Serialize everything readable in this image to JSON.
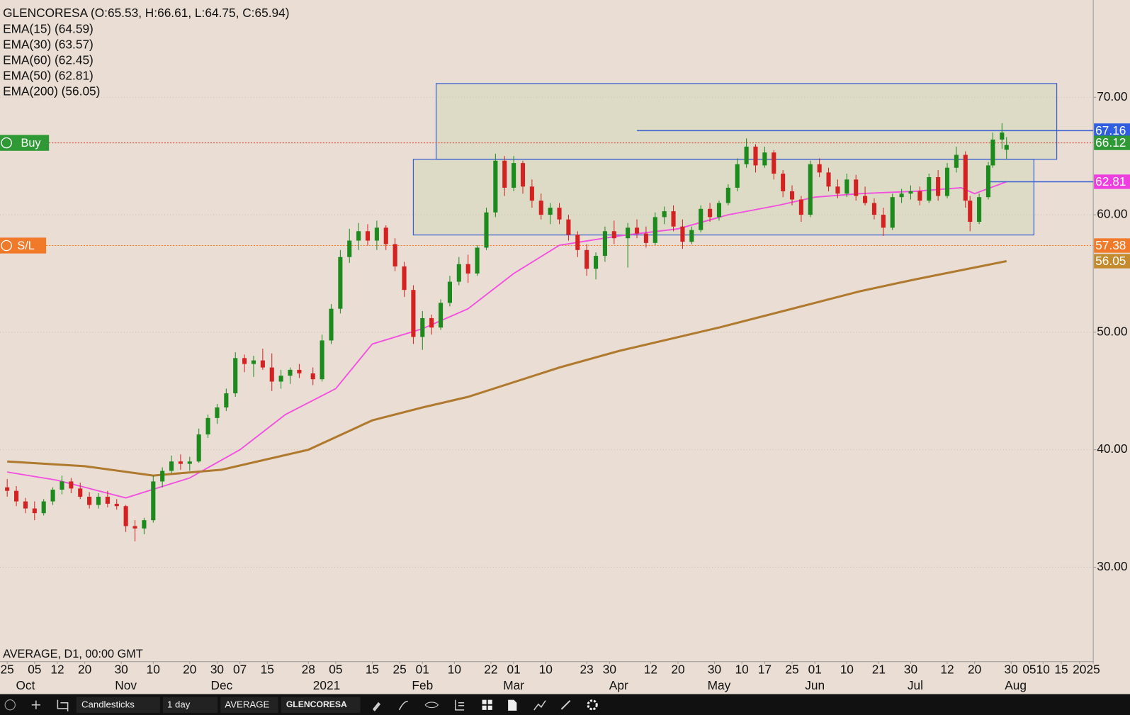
{
  "header": {
    "title": "GLENCORESA (O:65.53, H:66.61, L:64.75, C:65.94)",
    "indicators": [
      "EMA(15) (64.59)",
      "EMA(30) (63.57)",
      "EMA(60) (62.45)",
      "EMA(50) (62.81)",
      "EMA(200) (56.05)"
    ],
    "footer": "AVERAGE, D1, 00:00 GMT"
  },
  "toolbar": {
    "chart_type": "Candlesticks",
    "interval": "1 day",
    "indicator": "AVERAGE",
    "symbol": "GLENCORESA"
  },
  "chart_data": {
    "type": "candlestick",
    "up_color": "#1c8a1c",
    "down_color": "#d42121",
    "background": "#e9ddd4",
    "xlim": [
      "2020-09-25",
      "2021-08-25"
    ],
    "ylim": [
      21.96,
      78.28
    ],
    "yticks": [
      {
        "value": 30,
        "label": "30.00"
      },
      {
        "value": 40,
        "label": "40.00"
      },
      {
        "value": 50,
        "label": "50.00"
      },
      {
        "value": 60,
        "label": "60.00"
      },
      {
        "value": 70,
        "label": "70.00"
      }
    ],
    "grid": true,
    "xticks": [
      {
        "value": "2020-09-25",
        "label": "25"
      },
      {
        "value": "2020-10-05",
        "label": "05"
      },
      {
        "value": "2020-10-12",
        "label": "12"
      },
      {
        "value": "2020-10-20",
        "label": "20"
      },
      {
        "value": "2020-10-30",
        "label": "30"
      },
      {
        "value": "2020-11-10",
        "label": "10"
      },
      {
        "value": "2020-11-20",
        "label": "20"
      },
      {
        "value": "2020-11-30",
        "label": "30"
      },
      {
        "value": "2020-12-07",
        "label": "07"
      },
      {
        "value": "2020-12-15",
        "label": "15"
      },
      {
        "value": "2020-12-28",
        "label": "28"
      },
      {
        "value": "2021-01-05",
        "label": "05"
      },
      {
        "value": "2021-01-15",
        "label": "15"
      },
      {
        "value": "2021-01-25",
        "label": "25"
      },
      {
        "value": "2021-02-01",
        "label": "01"
      },
      {
        "value": "2021-02-10",
        "label": "10"
      },
      {
        "value": "2021-02-22",
        "label": "22"
      },
      {
        "value": "2021-03-01",
        "label": "01"
      },
      {
        "value": "2021-03-10",
        "label": "10"
      },
      {
        "value": "2021-03-23",
        "label": "23"
      },
      {
        "value": "2021-03-30",
        "label": "30"
      },
      {
        "value": "2021-04-12",
        "label": "12"
      },
      {
        "value": "2021-04-20",
        "label": "20"
      },
      {
        "value": "2021-04-30",
        "label": "30"
      },
      {
        "value": "2021-05-10",
        "label": "10"
      },
      {
        "value": "2021-05-17",
        "label": "17"
      },
      {
        "value": "2021-05-25",
        "label": "25"
      },
      {
        "value": "2021-06-01",
        "label": "01"
      },
      {
        "value": "2021-06-10",
        "label": "10"
      },
      {
        "value": "2021-06-21",
        "label": "21"
      },
      {
        "value": "2021-06-30",
        "label": "30"
      },
      {
        "value": "2021-07-12",
        "label": "12"
      },
      {
        "value": "2021-07-20",
        "label": "20"
      },
      {
        "value": "2021-07-30",
        "label": "30"
      },
      {
        "value": "2021-08-05",
        "label": "05"
      },
      {
        "value": "2021-08-10",
        "label": "10"
      },
      {
        "value": "2021-08-15",
        "label": "15"
      },
      {
        "value": "2021-08-20",
        "label": "20"
      },
      {
        "value": "2021-08-25",
        "label": "25"
      }
    ],
    "month_labels": [
      {
        "value": "2020-10-01",
        "label": "Oct"
      },
      {
        "value": "2020-11-02",
        "label": "Nov"
      },
      {
        "value": "2020-12-01",
        "label": "Dec"
      },
      {
        "value": "2021-01-01",
        "label": "2021"
      },
      {
        "value": "2021-02-01",
        "label": "Feb"
      },
      {
        "value": "2021-03-01",
        "label": "Mar"
      },
      {
        "value": "2021-04-01",
        "label": "Apr"
      },
      {
        "value": "2021-05-03",
        "label": "May"
      },
      {
        "value": "2021-06-01",
        "label": "Jun"
      },
      {
        "value": "2021-07-01",
        "label": "Jul"
      },
      {
        "value": "2021-08-02",
        "label": "Aug"
      }
    ],
    "candles": {
      "x": [
        "2020-09-25",
        "2020-09-29",
        "2020-10-01",
        "2020-10-05",
        "2020-10-07",
        "2020-10-09",
        "2020-10-13",
        "2020-10-15",
        "2020-10-19",
        "2020-10-21",
        "2020-10-23",
        "2020-10-27",
        "2020-10-29",
        "2020-11-02",
        "2020-11-04",
        "2020-11-06",
        "2020-11-10",
        "2020-11-12",
        "2020-11-16",
        "2020-11-18",
        "2020-11-20",
        "2020-11-24",
        "2020-11-26",
        "2020-11-30",
        "2020-12-02",
        "2020-12-04",
        "2020-12-08",
        "2020-12-10",
        "2020-12-14",
        "2020-12-16",
        "2020-12-18",
        "2020-12-22",
        "2020-12-24",
        "2020-12-29",
        "2020-12-31",
        "2021-01-04",
        "2021-01-06",
        "2021-01-08",
        "2021-01-12",
        "2021-01-14",
        "2021-01-18",
        "2021-01-20",
        "2021-01-22",
        "2021-01-26",
        "2021-01-28",
        "2021-02-01",
        "2021-02-03",
        "2021-02-05",
        "2021-02-09",
        "2021-02-11",
        "2021-02-15",
        "2021-02-17",
        "2021-02-19",
        "2021-02-23",
        "2021-02-25",
        "2021-03-01",
        "2021-03-03",
        "2021-03-05",
        "2021-03-09",
        "2021-03-11",
        "2021-03-15",
        "2021-03-17",
        "2021-03-19",
        "2021-03-23",
        "2021-03-25",
        "2021-03-29",
        "2021-03-31",
        "2021-04-05",
        "2021-04-07",
        "2021-04-09",
        "2021-04-13",
        "2021-04-15",
        "2021-04-19",
        "2021-04-21",
        "2021-04-23",
        "2021-04-27",
        "2021-04-29",
        "2021-05-03",
        "2021-05-05",
        "2021-05-07",
        "2021-05-11",
        "2021-05-13",
        "2021-05-17",
        "2021-05-19",
        "2021-05-21",
        "2021-05-25",
        "2021-05-27",
        "2021-05-31",
        "2021-06-02",
        "2021-06-04",
        "2021-06-08",
        "2021-06-10",
        "2021-06-14",
        "2021-06-16",
        "2021-06-18",
        "2021-06-22",
        "2021-06-24",
        "2021-06-28",
        "2021-06-30",
        "2021-07-02",
        "2021-07-06",
        "2021-07-08",
        "2021-07-12",
        "2021-07-14",
        "2021-07-16",
        "2021-07-19",
        "2021-07-21",
        "2021-07-23",
        "2021-07-26",
        "2021-07-28",
        "2021-07-29"
      ],
      "open": [
        36.8,
        36.5,
        35.6,
        35.0,
        34.6,
        35.6,
        36.6,
        37.3,
        36.7,
        36.0,
        35.3,
        36.0,
        35.4,
        35.2,
        33.5,
        33.3,
        34.0,
        37.3,
        38.2,
        39.0,
        38.8,
        39.0,
        41.3,
        42.7,
        43.6,
        44.8,
        47.8,
        47.3,
        47.6,
        47.0,
        45.8,
        46.3,
        46.8,
        46.5,
        46.0,
        49.3,
        52.0,
        56.4,
        57.8,
        58.6,
        57.8,
        58.9,
        57.5,
        55.6,
        53.6,
        49.6,
        51.2,
        50.4,
        52.5,
        54.3,
        55.8,
        55.0,
        57.2,
        60.2,
        64.6,
        62.3,
        64.4,
        62.4,
        61.2,
        60.0,
        60.6,
        59.6,
        58.3,
        57.0,
        55.4,
        56.5,
        58.6,
        58.0,
        58.9,
        58.4,
        57.6,
        59.8,
        60.3,
        59.0,
        57.7,
        58.7,
        60.5,
        59.8,
        61.0,
        62.3,
        64.3,
        65.8,
        64.2,
        65.3,
        63.5,
        62.0,
        61.3,
        60.0,
        64.3,
        63.6,
        62.4,
        61.8,
        63.0,
        61.6,
        61.0,
        60.0,
        58.9,
        61.5,
        61.8,
        62.0,
        61.2,
        63.2,
        61.6,
        64.0,
        65.1,
        61.2,
        59.4,
        61.5,
        64.2,
        66.4,
        65.53
      ],
      "high": [
        37.5,
        36.9,
        35.9,
        35.6,
        35.8,
        36.8,
        37.8,
        37.6,
        37.2,
        36.4,
        36.3,
        36.5,
        35.8,
        35.3,
        34.0,
        34.2,
        37.8,
        38.5,
        39.5,
        39.6,
        39.4,
        41.8,
        43.0,
        43.9,
        45.2,
        48.3,
        48.1,
        48.0,
        48.6,
        48.2,
        46.8,
        47.0,
        47.3,
        47.0,
        49.8,
        52.4,
        57.0,
        58.8,
        59.3,
        59.2,
        59.5,
        59.1,
        58.0,
        56.0,
        54.0,
        51.8,
        51.5,
        52.8,
        54.8,
        56.4,
        56.6,
        57.4,
        60.6,
        65.2,
        65.0,
        65.0,
        64.6,
        63.0,
        61.8,
        61.0,
        61.0,
        60.0,
        58.6,
        57.5,
        56.8,
        59.0,
        59.5,
        59.3,
        59.6,
        59.0,
        60.2,
        60.7,
        60.8,
        59.6,
        59.0,
        60.8,
        61.0,
        61.2,
        62.6,
        64.8,
        66.5,
        66.0,
        65.8,
        65.5,
        63.8,
        62.5,
        61.6,
        64.6,
        64.8,
        64.0,
        63.0,
        63.5,
        63.4,
        62.4,
        61.4,
        60.6,
        61.8,
        62.2,
        62.5,
        62.4,
        63.5,
        63.8,
        64.4,
        65.8,
        65.4,
        61.6,
        61.8,
        64.5,
        67.0,
        67.8,
        66.61
      ],
      "low": [
        36.0,
        35.2,
        34.6,
        34.0,
        34.4,
        35.3,
        36.2,
        36.3,
        35.8,
        35.0,
        35.0,
        35.1,
        34.9,
        33.0,
        32.2,
        32.8,
        33.8,
        36.8,
        38.0,
        38.3,
        38.2,
        38.9,
        41.0,
        42.2,
        43.3,
        44.5,
        46.6,
        46.2,
        46.8,
        45.0,
        45.2,
        45.6,
        46.1,
        45.5,
        45.8,
        49.0,
        51.6,
        55.9,
        57.0,
        57.4,
        57.0,
        57.0,
        55.2,
        53.0,
        49.0,
        48.5,
        49.8,
        50.2,
        52.2,
        54.0,
        54.2,
        54.8,
        57.0,
        59.8,
        61.6,
        62.0,
        61.8,
        60.6,
        59.6,
        59.2,
        59.2,
        57.8,
        56.4,
        54.8,
        54.5,
        56.0,
        57.5,
        55.5,
        58.0,
        57.2,
        57.4,
        59.2,
        58.6,
        57.1,
        57.5,
        58.5,
        59.4,
        59.5,
        60.8,
        62.0,
        64.0,
        63.6,
        64.0,
        63.0,
        61.5,
        60.8,
        59.4,
        59.8,
        63.2,
        62.0,
        61.4,
        61.5,
        61.2,
        60.8,
        59.6,
        58.2,
        58.7,
        61.0,
        61.3,
        60.8,
        61.0,
        61.2,
        61.4,
        63.6,
        60.6,
        58.6,
        59.2,
        61.3,
        64.0,
        65.6,
        64.75
      ],
      "close": [
        36.5,
        35.6,
        35.0,
        34.6,
        35.6,
        36.6,
        37.3,
        36.7,
        36.0,
        35.3,
        36.0,
        35.4,
        35.2,
        33.5,
        33.3,
        34.0,
        37.3,
        38.2,
        39.0,
        38.8,
        39.0,
        41.3,
        42.7,
        43.6,
        44.8,
        47.8,
        47.3,
        47.6,
        47.0,
        45.8,
        46.3,
        46.8,
        46.5,
        46.0,
        49.3,
        52.0,
        56.4,
        57.8,
        58.6,
        57.8,
        58.9,
        57.5,
        55.6,
        53.6,
        49.6,
        51.2,
        50.4,
        52.5,
        54.3,
        55.8,
        55.0,
        57.2,
        60.2,
        64.6,
        62.3,
        64.4,
        62.4,
        61.2,
        60.0,
        60.6,
        59.6,
        58.3,
        57.0,
        55.4,
        56.5,
        58.6,
        58.0,
        58.9,
        58.4,
        57.6,
        59.8,
        60.3,
        59.0,
        57.7,
        58.7,
        60.5,
        59.8,
        61.0,
        62.3,
        64.3,
        65.8,
        64.2,
        65.3,
        63.5,
        62.0,
        61.3,
        60.0,
        64.3,
        63.6,
        62.4,
        61.8,
        63.0,
        61.6,
        61.0,
        60.0,
        58.9,
        61.5,
        61.8,
        62.0,
        61.2,
        63.2,
        61.6,
        64.0,
        65.1,
        61.2,
        59.4,
        61.5,
        64.2,
        66.4,
        67.0,
        65.94
      ]
    },
    "series": [
      {
        "color": "#f24ee0",
        "x": [
          "2020-09-25",
          "2020-10-12",
          "2020-11-02",
          "2020-11-20",
          "2020-12-07",
          "2020-12-21",
          "2021-01-05",
          "2021-01-15",
          "2021-02-01",
          "2021-02-15",
          "2021-03-01",
          "2021-03-15",
          "2021-04-01",
          "2021-04-20",
          "2021-05-05",
          "2021-05-20",
          "2021-06-01",
          "2021-06-15",
          "2021-07-01",
          "2021-07-15",
          "2021-07-20",
          "2021-07-29"
        ],
        "values": [
          38.1,
          37.4,
          35.9,
          37.6,
          40.0,
          43.0,
          45.2,
          49.0,
          50.3,
          52.0,
          55.0,
          57.4,
          58.2,
          58.8,
          60.0,
          60.8,
          61.5,
          61.8,
          62.0,
          62.3,
          61.8,
          62.81
        ]
      },
      {
        "color": "#b07a2e",
        "x": [
          "2020-09-25",
          "2020-10-20",
          "2020-11-10",
          "2020-12-01",
          "2020-12-28",
          "2021-01-15",
          "2021-02-01",
          "2021-02-15",
          "2021-03-15",
          "2021-04-01",
          "2021-05-03",
          "2021-05-25",
          "2021-06-15",
          "2021-07-01",
          "2021-07-29"
        ],
        "values": [
          39.0,
          38.6,
          37.8,
          38.3,
          40.0,
          42.5,
          43.6,
          44.5,
          47.0,
          48.4,
          50.4,
          52.0,
          53.5,
          54.5,
          56.05
        ]
      }
    ],
    "zones": [
      {
        "color": "#3a5fd0",
        "x": [
          "2021-02-04",
          "2021-08-13"
        ],
        "y": [
          64.72,
          71.17
        ]
      },
      {
        "color": "#3a5fd0",
        "x": [
          "2021-01-28",
          "2021-08-06"
        ],
        "y": [
          58.28,
          64.72
        ]
      }
    ],
    "levels": [
      {
        "color": "#3a5fd0",
        "from": "2021-04-07",
        "value": 67.16
      },
      {
        "color": "#3a5fd0",
        "from": "2021-07-23",
        "value": 62.81
      }
    ],
    "orders": [
      {
        "label": "Buy",
        "value": 66.12,
        "color": "#e03a2a",
        "badge": "#2f9a35"
      },
      {
        "label": "S/L",
        "value": 57.38,
        "color": "#f07a2a",
        "badge": "#f07a2a"
      }
    ],
    "price_labels": [
      {
        "value": 67.16,
        "color": "#2f5fe0"
      },
      {
        "value": 66.12,
        "color": "#2f9a35"
      },
      {
        "value": 62.81,
        "color": "#ee3ee0"
      },
      {
        "value": 57.38,
        "color": "#f07a2a"
      },
      {
        "value": 56.05,
        "color": "#c48a2e"
      }
    ]
  }
}
